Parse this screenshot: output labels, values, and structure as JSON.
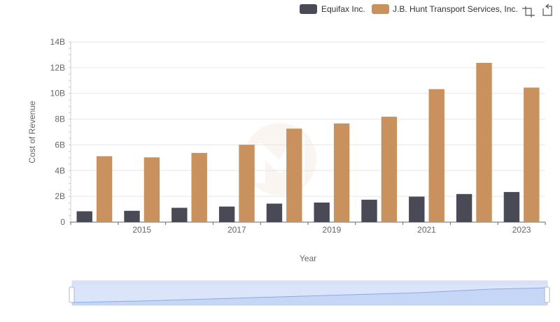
{
  "chart_data": {
    "type": "bar",
    "title": "",
    "xlabel": "Year",
    "ylabel": "Cost of Revenue",
    "categories": [
      "2014",
      "2015",
      "2016",
      "2017",
      "2018",
      "2019",
      "2020",
      "2021",
      "2022",
      "2023"
    ],
    "x_tick_labels": [
      "2015",
      "2017",
      "2019",
      "2021",
      "2023"
    ],
    "y_ticks": [
      0,
      2,
      4,
      6,
      8,
      10,
      12,
      14
    ],
    "y_tick_labels": [
      "0",
      "2B",
      "4B",
      "6B",
      "8B",
      "10B",
      "12B",
      "14B"
    ],
    "ylim": [
      0,
      14
    ],
    "y_unit": "billions",
    "grid": true,
    "legend_position": "top-right",
    "series": [
      {
        "name": "Equifax Inc.",
        "color": "#4a4a57",
        "values": [
          0.84,
          0.88,
          1.11,
          1.21,
          1.44,
          1.52,
          1.74,
          1.98,
          2.18,
          2.34
        ]
      },
      {
        "name": "J.B. Hunt Transport Services, Inc.",
        "color": "#c9915d",
        "values": [
          5.12,
          5.03,
          5.38,
          6.01,
          7.26,
          7.67,
          8.19,
          10.33,
          12.37,
          10.45
        ]
      }
    ]
  },
  "toolbar": {
    "zoom_icon": "zoom-select-icon",
    "reset_icon": "zoom-reset-icon"
  }
}
